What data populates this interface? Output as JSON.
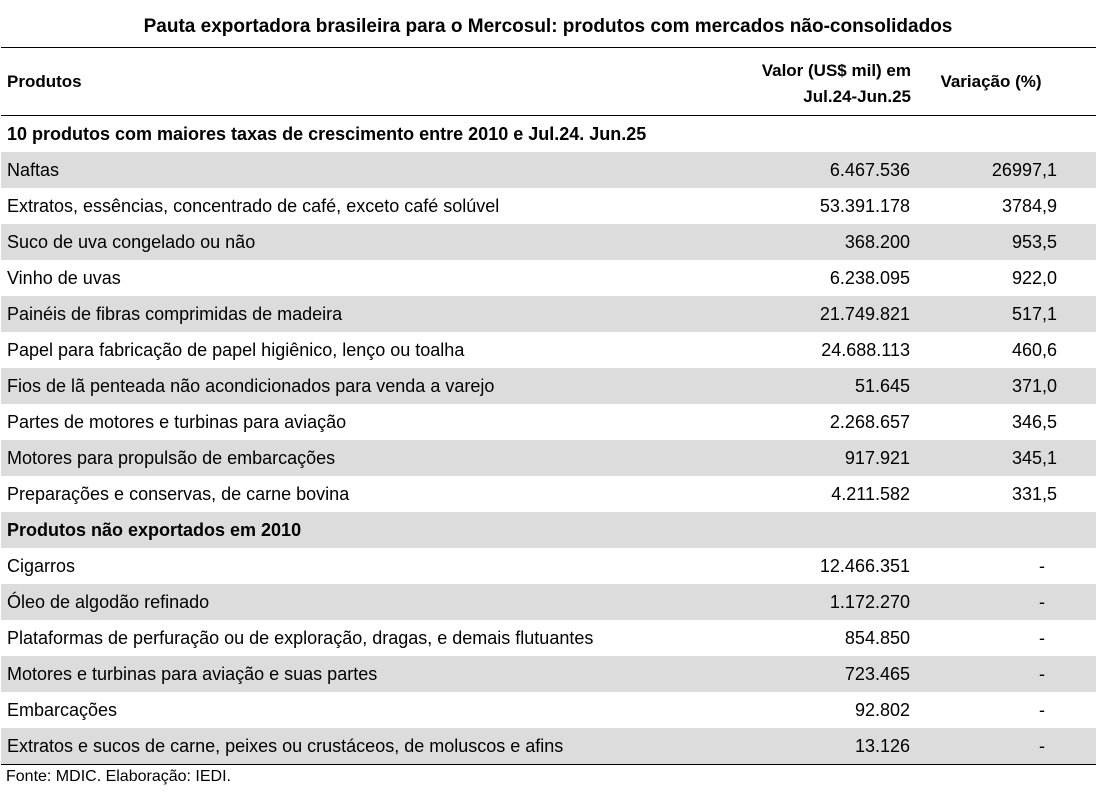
{
  "title": "Pauta exportadora brasileira para o Mercosul: produtos com mercados não-consolidados",
  "headers": {
    "products": "Produtos",
    "value_line1": "Valor (US$ mil) em",
    "value_line2": "Jul.24-Jun.25",
    "variation": "Variação (%)"
  },
  "sections": [
    {
      "title": "10 produtos com maiores taxas de crescimento entre 2010 e Jul.24. Jun.25",
      "rows": [
        {
          "name": "Naftas",
          "value": "6.467.536",
          "variation": "26997,1"
        },
        {
          "name": "Extratos, essências, concentrado de café, exceto café solúvel",
          "value": "53.391.178",
          "variation": "3784,9"
        },
        {
          "name": "Suco de uva congelado ou não",
          "value": "368.200",
          "variation": "953,5"
        },
        {
          "name": "Vinho de uvas",
          "value": "6.238.095",
          "variation": "922,0"
        },
        {
          "name": "Painéis de fibras comprimidas de madeira",
          "value": "21.749.821",
          "variation": "517,1"
        },
        {
          "name": "Papel para fabricação de papel higiênico, lenço ou toalha",
          "value": "24.688.113",
          "variation": "460,6"
        },
        {
          "name": "Fios de lã penteada não acondicionados para venda a varejo",
          "value": "51.645",
          "variation": "371,0"
        },
        {
          "name": "Partes de motores e turbinas para aviação",
          "value": "2.268.657",
          "variation": "346,5"
        },
        {
          "name": "Motores para propulsão de embarcações",
          "value": "917.921",
          "variation": "345,1"
        },
        {
          "name": "Preparações e conservas, de carne bovina",
          "value": "4.211.582",
          "variation": "331,5"
        }
      ]
    },
    {
      "title": "Produtos não exportados em 2010",
      "rows": [
        {
          "name": "Cigarros",
          "value": "12.466.351",
          "variation": "-"
        },
        {
          "name": "Óleo de algodão refinado",
          "value": "1.172.270",
          "variation": "-"
        },
        {
          "name": "Plataformas de perfuração ou de exploração, dragas, e demais flutuantes",
          "value": "854.850",
          "variation": "-"
        },
        {
          "name": "Motores e turbinas para aviação e suas partes",
          "value": "723.465",
          "variation": "-"
        },
        {
          "name": "Embarcações",
          "value": "92.802",
          "variation": "-"
        },
        {
          "name": "Extratos e sucos de carne, peixes ou crustáceos, de moluscos e afins",
          "value": "13.126",
          "variation": "-"
        }
      ]
    }
  ],
  "source": "Fonte: MDIC. Elaboração: IEDI."
}
